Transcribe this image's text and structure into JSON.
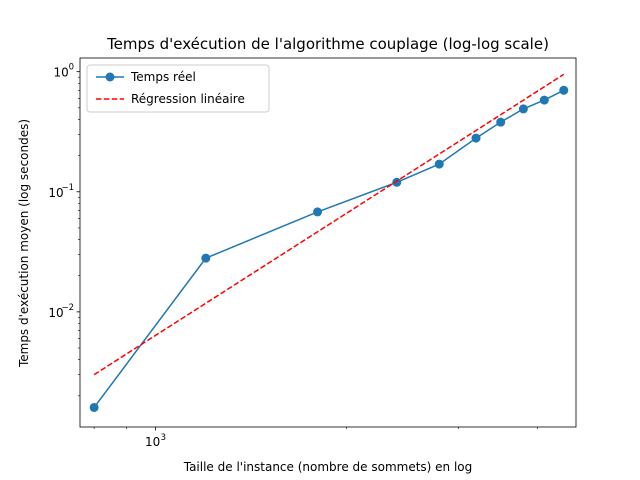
{
  "chart_data": {
    "type": "line",
    "title": "Temps d'exécution de l'algorithme couplage (log-log scale)",
    "xlabel": "Taille de l'instance (nombre de sommets) en log",
    "ylabel": "Temps d'exécution moyen (log secondes)",
    "xscale": "log",
    "yscale": "log",
    "xlim": [
      760,
      4600
    ],
    "ylim": [
      0.0011,
      1.3
    ],
    "x_major_ticks": [
      {
        "value": 1000,
        "base": "10",
        "exp": "3"
      }
    ],
    "x_minor_ticks": [
      800,
      900,
      2000,
      3000,
      4000
    ],
    "y_major_ticks": [
      {
        "value": 0.01,
        "base": "10",
        "exp": "−2"
      },
      {
        "value": 0.1,
        "base": "10",
        "exp": "−1"
      },
      {
        "value": 1,
        "base": "10",
        "exp": "0"
      }
    ],
    "y_minor_ticks": [
      0.002,
      0.003,
      0.004,
      0.005,
      0.006,
      0.007,
      0.008,
      0.009,
      0.02,
      0.03,
      0.04,
      0.05,
      0.06,
      0.07,
      0.08,
      0.09,
      0.2,
      0.3,
      0.4,
      0.5,
      0.6,
      0.7,
      0.8,
      0.9
    ],
    "grid": false,
    "legend_position": "top-left",
    "series": [
      {
        "name": "Temps réel",
        "style": "solid-line-with-circle-markers",
        "color": "#1f77b4",
        "points": [
          {
            "x": 800,
            "y": 0.0016
          },
          {
            "x": 1200,
            "y": 0.028
          },
          {
            "x": 1800,
            "y": 0.068
          },
          {
            "x": 2400,
            "y": 0.12
          },
          {
            "x": 2800,
            "y": 0.17
          },
          {
            "x": 3200,
            "y": 0.28
          },
          {
            "x": 3500,
            "y": 0.38
          },
          {
            "x": 3800,
            "y": 0.49
          },
          {
            "x": 4100,
            "y": 0.58
          },
          {
            "x": 4400,
            "y": 0.7
          }
        ]
      },
      {
        "name": "Régression linéaire",
        "style": "dashed-line",
        "color": "#ff0000",
        "points": [
          {
            "x": 800,
            "y": 0.003
          },
          {
            "x": 4400,
            "y": 0.95
          }
        ]
      }
    ]
  }
}
